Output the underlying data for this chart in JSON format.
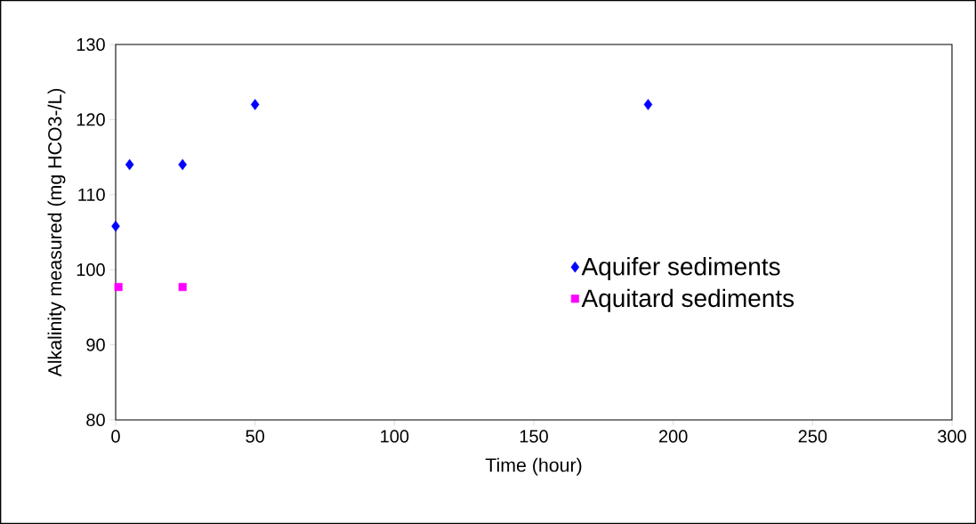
{
  "chart_data": {
    "type": "scatter",
    "xlabel": "Time (hour)",
    "ylabel": "Alkalinity measured (mg HCO3-/L)",
    "series": [
      {
        "name": "Aquifer sediments",
        "color": "#0000ff",
        "marker": "diamond",
        "x": [
          0,
          5,
          24,
          50,
          191
        ],
        "values": [
          105.8,
          114,
          114,
          122,
          122
        ]
      },
      {
        "name": "Aquitard sediments",
        "color": "#ff00ff",
        "marker": "square",
        "x": [
          1,
          24
        ],
        "values": [
          97.7,
          97.7
        ]
      }
    ],
    "xlim": [
      0,
      300
    ],
    "xticks": [
      0,
      50,
      100,
      150,
      200,
      250,
      300
    ],
    "ylim": [
      80,
      130
    ],
    "yticks": [
      80,
      90,
      100,
      110,
      120,
      130
    ],
    "grid": false,
    "legend": "right"
  }
}
